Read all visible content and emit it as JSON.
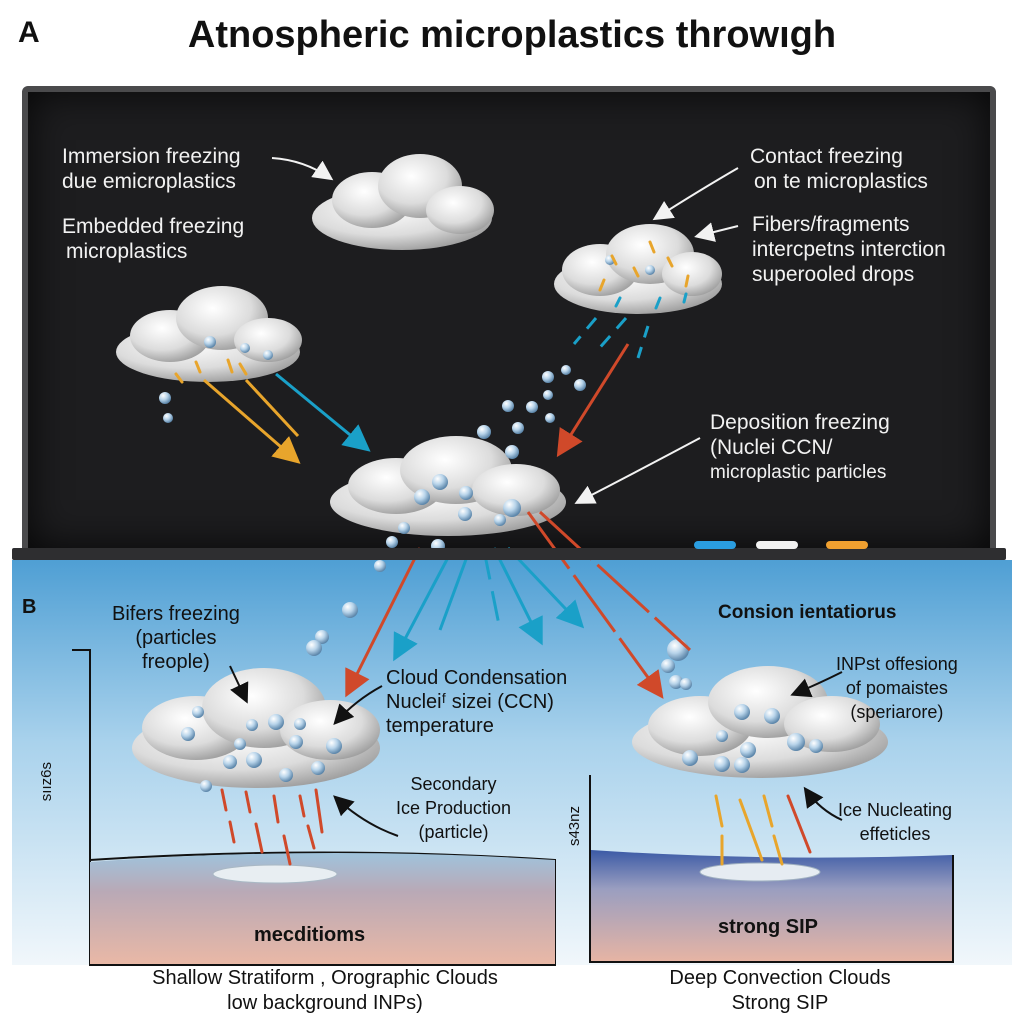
{
  "panel_a": {
    "letter": "A",
    "title": "Atnospheric microplastics throwıgh",
    "labels": {
      "immersion": [
        "Immersion freezing",
        "due emicroplastics"
      ],
      "embedded": [
        "Embedded freezing",
        "microplastics"
      ],
      "contact": [
        "Contact freezing",
        "on te microplastics"
      ],
      "fibers": [
        "Fibers/fragments",
        "intercpetns interction",
        "superooled drops"
      ],
      "deposition": [
        "Deposition freezing",
        "(Nuclei CCN/",
        "microplastic particles"
      ]
    }
  },
  "panel_b": {
    "letter": "B",
    "labels": {
      "bifers": [
        "Bifers freezing",
        "(particles",
        "freople)"
      ],
      "ccn": [
        "Cloud Condensation",
        "Nucleiᶠ sizei (CCN)",
        "temperature"
      ],
      "secondary": [
        "Secondary",
        "Ice Production",
        "(particle)"
      ],
      "consion": "Consion ientatiorus",
      "inps": [
        "INPst offesiong",
        "of pomaistes",
        "(speriarore)"
      ],
      "ice_nucleating": [
        "Ice Nucleating",
        "effeticles"
      ]
    },
    "left_scene": {
      "side_mark": "sıız6s",
      "ground_label": "mecditioms",
      "caption": [
        "Shallow Stratiform , Orographic Clouds",
        "low background INPs)"
      ]
    },
    "right_scene": {
      "side_mark": "s43nz",
      "ground_label": "strong SIP",
      "caption": [
        "Deep Convection Clouds",
        "Strong SIP"
      ]
    }
  },
  "colors": {
    "board": "#1d1d1f",
    "sky_top": "#5aa6d8",
    "sky_bottom": "#eef6fb",
    "arrow_blue": "#1aa0c8",
    "arrow_red": "#d0492a",
    "arrow_orange": "#e8a52c",
    "chalk_blue": "#2a9de0",
    "chalk_white": "#f2f2f2",
    "chalk_orange": "#f0a030"
  }
}
